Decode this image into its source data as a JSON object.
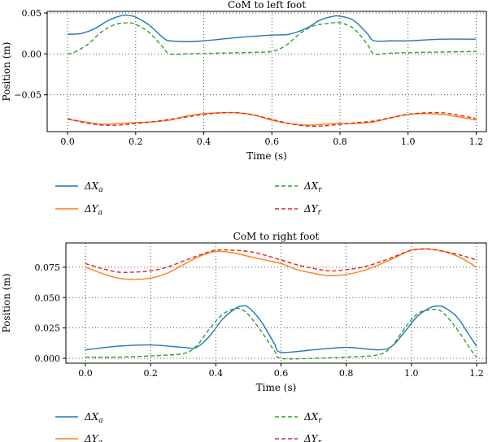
{
  "chart_data": [
    {
      "type": "line",
      "title": "CoM to left foot",
      "xlabel": "Time (s)",
      "ylabel": "Position (m)",
      "xlim": [
        -0.06,
        1.23
      ],
      "ylim": [
        -0.095,
        0.052
      ],
      "xticks": [
        0.0,
        0.2,
        0.4,
        0.6,
        0.8,
        1.0,
        1.2
      ],
      "xtick_labels": [
        "0.0",
        "0.2",
        "0.4",
        "0.6",
        "0.8",
        "1.0",
        "1.2"
      ],
      "yticks": [
        -0.05,
        0.0,
        0.05
      ],
      "ytick_labels": [
        "−0.05",
        "0.00",
        "0.05"
      ],
      "grid": true,
      "legend_position": "bottom",
      "series": [
        {
          "name": "ΔX",
          "sub": "a",
          "color": "#1f77b4",
          "dash": "solid",
          "x": [
            0.0,
            0.04,
            0.08,
            0.12,
            0.16,
            0.18,
            0.2,
            0.24,
            0.28,
            0.3,
            0.35,
            0.4,
            0.5,
            0.6,
            0.65,
            0.7,
            0.74,
            0.78,
            0.8,
            0.84,
            0.88,
            0.9,
            0.95,
            1.0,
            1.1,
            1.2
          ],
          "y": [
            0.024,
            0.025,
            0.031,
            0.041,
            0.047,
            0.047,
            0.045,
            0.035,
            0.02,
            0.016,
            0.015,
            0.016,
            0.02,
            0.023,
            0.024,
            0.031,
            0.041,
            0.046,
            0.046,
            0.041,
            0.025,
            0.016,
            0.016,
            0.016,
            0.018,
            0.018
          ]
        },
        {
          "name": "ΔX",
          "sub": "r",
          "color": "#2ca02c",
          "dash": "dashed",
          "x": [
            0.0,
            0.02,
            0.06,
            0.1,
            0.14,
            0.18,
            0.2,
            0.24,
            0.28,
            0.3,
            0.35,
            0.45,
            0.55,
            0.6,
            0.64,
            0.68,
            0.72,
            0.76,
            0.8,
            0.84,
            0.88,
            0.9,
            0.95,
            1.05,
            1.2
          ],
          "y": [
            0.0,
            0.002,
            0.012,
            0.027,
            0.036,
            0.038,
            0.036,
            0.026,
            0.008,
            0.0,
            0.0,
            0.001,
            0.002,
            0.003,
            0.01,
            0.024,
            0.034,
            0.037,
            0.038,
            0.031,
            0.012,
            0.0,
            0.001,
            0.002,
            0.003
          ]
        },
        {
          "name": "ΔY",
          "sub": "a",
          "color": "#ff7f0e",
          "dash": "solid",
          "x": [
            0.0,
            0.05,
            0.1,
            0.15,
            0.2,
            0.25,
            0.3,
            0.35,
            0.4,
            0.45,
            0.5,
            0.55,
            0.6,
            0.65,
            0.7,
            0.75,
            0.8,
            0.85,
            0.9,
            0.95,
            1.0,
            1.05,
            1.1,
            1.15,
            1.2
          ],
          "y": [
            -0.08,
            -0.083,
            -0.086,
            -0.085,
            -0.084,
            -0.083,
            -0.081,
            -0.076,
            -0.073,
            -0.072,
            -0.072,
            -0.075,
            -0.081,
            -0.085,
            -0.087,
            -0.086,
            -0.085,
            -0.085,
            -0.083,
            -0.078,
            -0.074,
            -0.073,
            -0.074,
            -0.077,
            -0.081
          ]
        },
        {
          "name": "ΔY",
          "sub": "r",
          "color": "#d62728",
          "dash": "dashed",
          "x": [
            0.0,
            0.05,
            0.1,
            0.15,
            0.2,
            0.25,
            0.3,
            0.35,
            0.4,
            0.45,
            0.5,
            0.55,
            0.6,
            0.65,
            0.7,
            0.75,
            0.8,
            0.85,
            0.9,
            0.95,
            1.0,
            1.05,
            1.1,
            1.15,
            1.2
          ],
          "y": [
            -0.079,
            -0.084,
            -0.087,
            -0.087,
            -0.085,
            -0.083,
            -0.08,
            -0.077,
            -0.074,
            -0.072,
            -0.072,
            -0.075,
            -0.08,
            -0.085,
            -0.088,
            -0.088,
            -0.086,
            -0.084,
            -0.082,
            -0.078,
            -0.074,
            -0.072,
            -0.072,
            -0.075,
            -0.079
          ]
        }
      ]
    },
    {
      "type": "line",
      "title": "CoM to right foot",
      "xlabel": "Time (s)",
      "ylabel": "Position (m)",
      "xlim": [
        -0.06,
        1.23
      ],
      "ylim": [
        -0.004,
        0.095
      ],
      "xticks": [
        0.0,
        0.2,
        0.4,
        0.6,
        0.8,
        1.0,
        1.2
      ],
      "xtick_labels": [
        "0.0",
        "0.2",
        "0.4",
        "0.6",
        "0.8",
        "1.0",
        "1.2"
      ],
      "yticks": [
        0.0,
        0.025,
        0.05,
        0.075
      ],
      "ytick_labels": [
        "0.000",
        "0.025",
        "0.050",
        "0.075"
      ],
      "grid": true,
      "legend_position": "bottom",
      "series": [
        {
          "name": "ΔX",
          "sub": "a",
          "color": "#1f77b4",
          "dash": "solid",
          "x": [
            0.0,
            0.1,
            0.2,
            0.3,
            0.34,
            0.38,
            0.42,
            0.46,
            0.48,
            0.5,
            0.54,
            0.58,
            0.6,
            0.7,
            0.8,
            0.9,
            0.94,
            0.98,
            1.02,
            1.06,
            1.08,
            1.1,
            1.14,
            1.18,
            1.2
          ],
          "y": [
            0.007,
            0.01,
            0.011,
            0.009,
            0.009,
            0.018,
            0.032,
            0.041,
            0.043,
            0.042,
            0.03,
            0.012,
            0.005,
            0.007,
            0.009,
            0.007,
            0.01,
            0.022,
            0.035,
            0.042,
            0.043,
            0.042,
            0.034,
            0.018,
            0.01
          ]
        },
        {
          "name": "ΔX",
          "sub": "r",
          "color": "#2ca02c",
          "dash": "dashed",
          "x": [
            0.0,
            0.1,
            0.2,
            0.3,
            0.34,
            0.38,
            0.42,
            0.46,
            0.48,
            0.5,
            0.54,
            0.58,
            0.6,
            0.7,
            0.8,
            0.9,
            0.94,
            0.98,
            1.02,
            1.06,
            1.08,
            1.1,
            1.14,
            1.18,
            1.2
          ],
          "y": [
            0.001,
            0.001,
            0.002,
            0.004,
            0.01,
            0.024,
            0.036,
            0.041,
            0.04,
            0.036,
            0.022,
            0.006,
            0.0,
            0.0,
            0.001,
            0.003,
            0.01,
            0.025,
            0.037,
            0.04,
            0.04,
            0.037,
            0.024,
            0.008,
            0.001
          ]
        },
        {
          "name": "ΔY",
          "sub": "a",
          "color": "#ff7f0e",
          "dash": "solid",
          "x": [
            0.0,
            0.05,
            0.1,
            0.15,
            0.2,
            0.25,
            0.3,
            0.35,
            0.4,
            0.45,
            0.5,
            0.55,
            0.6,
            0.65,
            0.7,
            0.75,
            0.8,
            0.85,
            0.9,
            0.95,
            1.0,
            1.05,
            1.1,
            1.15,
            1.2
          ],
          "y": [
            0.075,
            0.07,
            0.066,
            0.065,
            0.066,
            0.07,
            0.077,
            0.084,
            0.088,
            0.087,
            0.084,
            0.081,
            0.078,
            0.073,
            0.07,
            0.068,
            0.069,
            0.072,
            0.077,
            0.083,
            0.089,
            0.09,
            0.088,
            0.083,
            0.075
          ]
        },
        {
          "name": "ΔY",
          "sub": "r",
          "color": "#d62728",
          "dash": "dashed",
          "x": [
            0.0,
            0.05,
            0.1,
            0.15,
            0.2,
            0.25,
            0.3,
            0.35,
            0.4,
            0.45,
            0.5,
            0.55,
            0.6,
            0.65,
            0.7,
            0.75,
            0.8,
            0.85,
            0.9,
            0.95,
            1.0,
            1.05,
            1.1,
            1.15,
            1.2
          ],
          "y": [
            0.078,
            0.074,
            0.071,
            0.071,
            0.072,
            0.075,
            0.08,
            0.085,
            0.089,
            0.089,
            0.088,
            0.085,
            0.081,
            0.077,
            0.074,
            0.072,
            0.073,
            0.075,
            0.079,
            0.084,
            0.089,
            0.09,
            0.088,
            0.085,
            0.081
          ]
        }
      ]
    }
  ]
}
